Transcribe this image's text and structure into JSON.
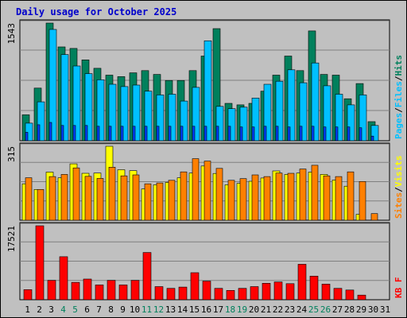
{
  "title": "Daily usage for October 2025",
  "days": [
    "1",
    "2",
    "3",
    "4",
    "5",
    "6",
    "7",
    "8",
    "9",
    "10",
    "11",
    "12",
    "13",
    "14",
    "15",
    "16",
    "17",
    "18",
    "19",
    "20",
    "21",
    "22",
    "23",
    "24",
    "25",
    "26",
    "27",
    "28",
    "29",
    "30",
    "31"
  ],
  "weekend_days": [
    4,
    5,
    11,
    12,
    18,
    19,
    25,
    26
  ],
  "colors": {
    "background": "#c0c0c0",
    "hits": "#00805c",
    "files": "#00c0ff",
    "pages": "#0040ff",
    "visits": "#ffff00",
    "sites": "#ff8000",
    "kbytes": "#ff0000",
    "title": "#0000cc",
    "weekend_label": "#00805c",
    "weekday_label": "#000000"
  },
  "chart_data": [
    {
      "type": "bar",
      "panel": "hits-files-pages",
      "ymax_label": "1543",
      "ylim": [
        0,
        1543
      ],
      "right_label_parts": [
        "Pages",
        "Files",
        "Hits"
      ],
      "separator": "/",
      "series": [
        {
          "name": "Hits",
          "values": [
            340,
            690,
            1543,
            1230,
            1210,
            1060,
            950,
            860,
            840,
            890,
            920,
            870,
            790,
            790,
            920,
            1110,
            1470,
            490,
            470,
            490,
            650,
            860,
            1110,
            920,
            1440,
            870,
            860,
            550,
            750,
            250,
            0
          ]
        },
        {
          "name": "Files",
          "values": [
            230,
            510,
            1460,
            1130,
            980,
            880,
            800,
            740,
            710,
            730,
            650,
            600,
            610,
            520,
            700,
            1310,
            450,
            420,
            440,
            560,
            740,
            780,
            930,
            760,
            1020,
            720,
            610,
            470,
            600,
            200,
            0
          ]
        },
        {
          "name": "Pages",
          "values": [
            110,
            210,
            240,
            200,
            200,
            200,
            190,
            190,
            190,
            190,
            190,
            190,
            190,
            190,
            190,
            190,
            190,
            190,
            180,
            180,
            190,
            190,
            180,
            190,
            190,
            180,
            180,
            180,
            170,
            60,
            0
          ]
        }
      ]
    },
    {
      "type": "bar",
      "panel": "visits-sites",
      "ymax_label": "315",
      "ylim": [
        0,
        315
      ],
      "right_label_parts": [
        "Sites",
        "Visits"
      ],
      "separator": "/",
      "series": [
        {
          "name": "Visits",
          "values": [
            155,
            131,
            205,
            181,
            240,
            200,
            201,
            315,
            215,
            211,
            133,
            151,
            161,
            181,
            201,
            231,
            199,
            151,
            157,
            166,
            180,
            210,
            195,
            201,
            205,
            195,
            171,
            145,
            25,
            0,
            0
          ]
        },
        {
          "name": "Sites",
          "values": [
            181,
            131,
            186,
            195,
            223,
            187,
            178,
            226,
            189,
            193,
            155,
            159,
            170,
            206,
            262,
            252,
            221,
            170,
            177,
            193,
            186,
            201,
            200,
            218,
            234,
            189,
            186,
            206,
            165,
            28,
            0
          ]
        }
      ]
    },
    {
      "type": "bar",
      "panel": "kbytes",
      "ymax_label": "17521",
      "ylim": [
        0,
        17521
      ],
      "right_label_parts": [
        "KB",
        "F"
      ],
      "separator": " ",
      "series": [
        {
          "name": "KB F",
          "values": [
            2400,
            17521,
            4600,
            10200,
            4100,
            4900,
            3500,
            4600,
            3500,
            4600,
            11200,
            3100,
            2700,
            3000,
            6400,
            4400,
            2700,
            2200,
            2700,
            3100,
            3900,
            4200,
            3800,
            8400,
            5600,
            3700,
            2700,
            2300,
            1100,
            0,
            0
          ]
        }
      ]
    }
  ]
}
